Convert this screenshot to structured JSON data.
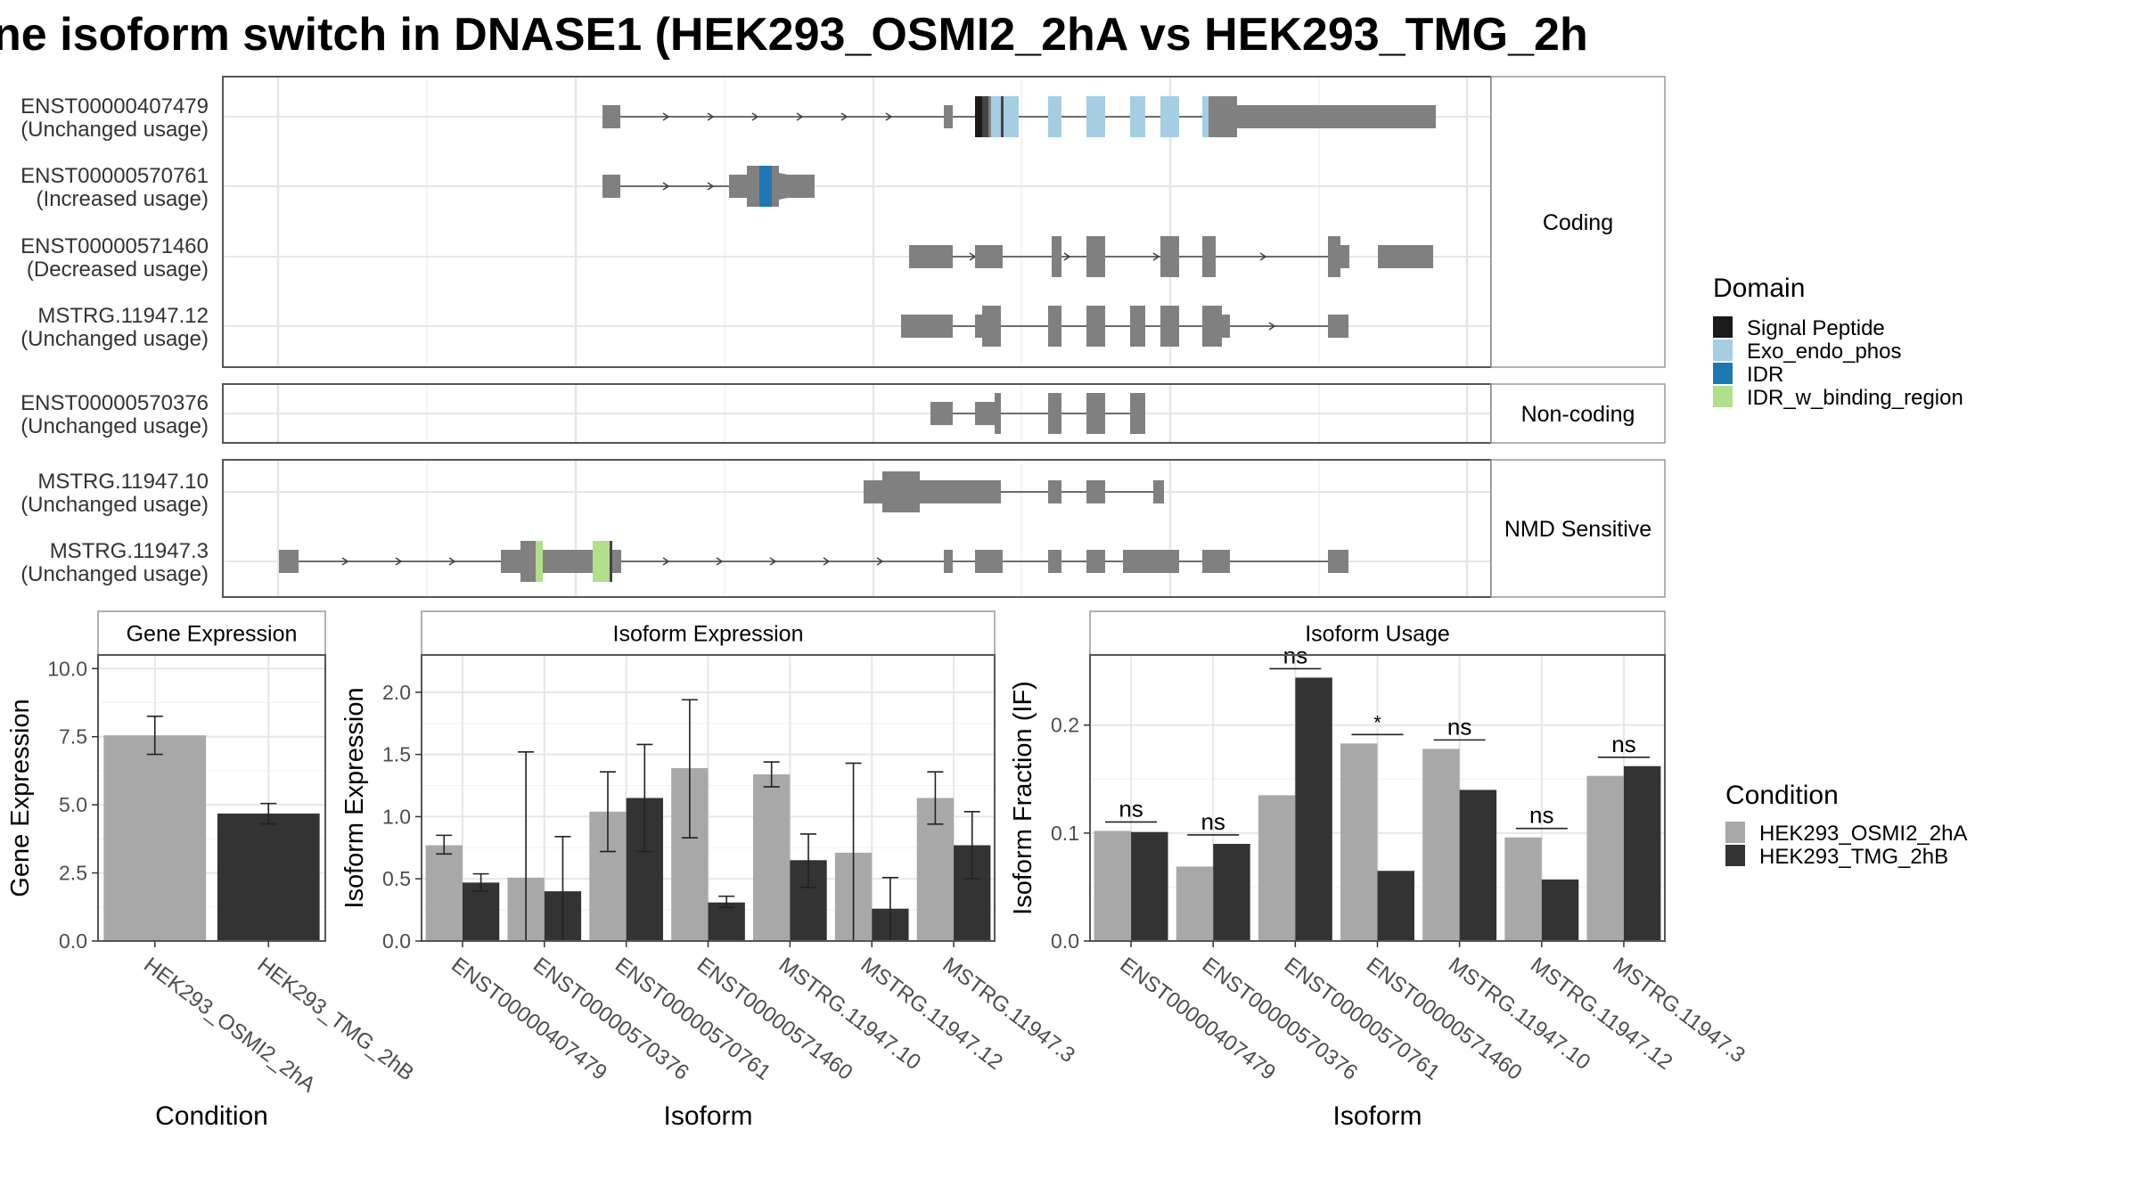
{
  "title": "ne isoform switch in DNASE1 (HEK293_OSMI2_2hA vs HEK293_TMG_2h",
  "colors": {
    "exon": "#808080",
    "cond1": "#a8a8a8",
    "cond2": "#333333",
    "grid": "#e6e6e6",
    "strip": "#ffffff",
    "panel_border": "#555555"
  },
  "chart_data": [
    {
      "type": "gene_structure",
      "panel_name": "transcript-structure",
      "groups": [
        {
          "label": "Coding",
          "transcripts": [
            {
              "id": "ENST00000407479",
              "usage": "(Unchanged usage)"
            },
            {
              "id": "ENST00000570761",
              "usage": "(Increased usage)"
            },
            {
              "id": "ENST00000571460",
              "usage": "(Decreased usage)"
            },
            {
              "id": "MSTRG.11947.12",
              "usage": "(Unchanged usage)"
            }
          ]
        },
        {
          "label": "Non-coding",
          "transcripts": [
            {
              "id": "ENST00000570376",
              "usage": "(Unchanged usage)"
            }
          ]
        },
        {
          "label": "NMD Sensitive",
          "transcripts": [
            {
              "id": "MSTRG.11947.10",
              "usage": "(Unchanged usage)"
            },
            {
              "id": "MSTRG.11947.3",
              "usage": "(Unchanged usage)"
            }
          ]
        }
      ],
      "legend": {
        "title": "Domain",
        "items": [
          {
            "name": "Signal Peptide",
            "color": "#1a1a1a"
          },
          {
            "name": "Exo_endo_phos",
            "color": "#a6cee3"
          },
          {
            "name": "IDR",
            "color": "#1f78b4"
          },
          {
            "name": "IDR_w_binding_region",
            "color": "#b2df8a"
          }
        ]
      }
    },
    {
      "type": "bar",
      "panel_name": "gene-expression",
      "strip": "Gene Expression",
      "xlabel": "Condition",
      "ylabel": "Gene Expression",
      "ylim": [
        0,
        10.5
      ],
      "yticks": [
        0.0,
        2.5,
        5.0,
        7.5,
        10.0
      ],
      "ytick_labels": [
        "0.0",
        "2.5",
        "5.0",
        "7.5",
        "10.0"
      ],
      "categories": [
        "HEK293_OSMI2_2hA",
        "HEK293_TMG_2hB"
      ],
      "values": [
        7.55,
        4.68
      ],
      "errors": [
        [
          6.85,
          8.25
        ],
        [
          4.3,
          5.05
        ]
      ]
    },
    {
      "type": "bar",
      "panel_name": "isoform-expression",
      "strip": "Isoform Expression",
      "xlabel": "Isoform",
      "ylabel": "Isoform Expression",
      "ylim": [
        0,
        2.3
      ],
      "yticks": [
        0.0,
        0.5,
        1.0,
        1.5,
        2.0
      ],
      "ytick_labels": [
        "0.0",
        "0.5",
        "1.0",
        "1.5",
        "2.0"
      ],
      "categories": [
        "ENST00000407479",
        "ENST00000570376",
        "ENST00000570761",
        "ENST00000571460",
        "MSTRG.11947.10",
        "MSTRG.11947.12",
        "MSTRG.11947.3"
      ],
      "series": [
        {
          "name": "HEK293_OSMI2_2hA",
          "values": [
            0.77,
            0.51,
            1.04,
            1.39,
            1.34,
            0.71,
            1.15
          ],
          "errors": [
            [
              0.7,
              0.85
            ],
            [
              0.0,
              1.52
            ],
            [
              0.72,
              1.36
            ],
            [
              0.83,
              1.94
            ],
            [
              1.24,
              1.44
            ],
            [
              0.0,
              1.43
            ],
            [
              0.94,
              1.36
            ]
          ]
        },
        {
          "name": "HEK293_TMG_2hB",
          "values": [
            0.47,
            0.4,
            1.15,
            0.31,
            0.65,
            0.26,
            0.77
          ],
          "errors": [
            [
              0.4,
              0.54
            ],
            [
              0.0,
              0.84
            ],
            [
              0.72,
              1.58
            ],
            [
              0.27,
              0.36
            ],
            [
              0.43,
              0.86
            ],
            [
              0.0,
              0.51
            ],
            [
              0.5,
              1.04
            ]
          ]
        }
      ]
    },
    {
      "type": "bar",
      "panel_name": "isoform-usage",
      "strip": "Isoform Usage",
      "xlabel": "Isoform",
      "ylabel": "Isoform Fraction (IF)",
      "ylim": [
        0,
        0.265
      ],
      "yticks": [
        0.0,
        0.1,
        0.2
      ],
      "ytick_labels": [
        "0.0",
        "0.1",
        "0.2"
      ],
      "categories": [
        "ENST00000407479",
        "ENST00000570376",
        "ENST00000570761",
        "ENST00000571460",
        "MSTRG.11947.10",
        "MSTRG.11947.12",
        "MSTRG.11947.3"
      ],
      "series": [
        {
          "name": "HEK293_OSMI2_2hA",
          "values": [
            0.102,
            0.069,
            0.135,
            0.183,
            0.178,
            0.096,
            0.153
          ]
        },
        {
          "name": "HEK293_TMG_2hB",
          "values": [
            0.101,
            0.09,
            0.244,
            0.065,
            0.14,
            0.057,
            0.162
          ]
        }
      ],
      "significance": [
        "ns",
        "ns",
        "ns",
        "*",
        "ns",
        "ns",
        "ns"
      ]
    }
  ],
  "condition_legend": {
    "title": "Condition",
    "items": [
      {
        "name": "HEK293_OSMI2_2hA",
        "color": "#a8a8a8"
      },
      {
        "name": "HEK293_TMG_2hB",
        "color": "#333333"
      }
    ]
  }
}
